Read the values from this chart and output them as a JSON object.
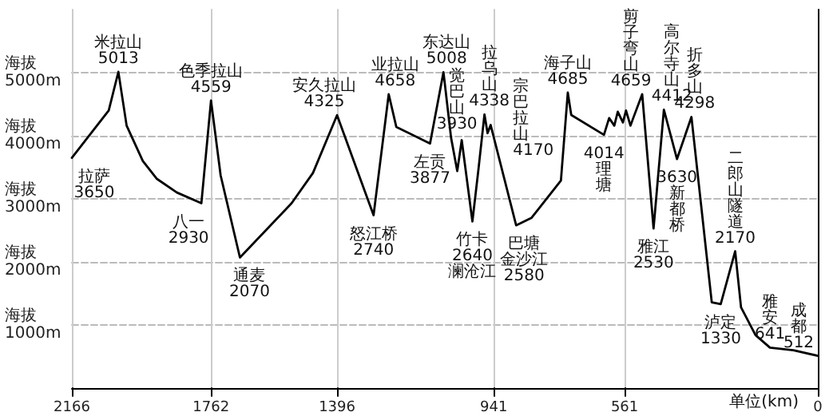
{
  "chart_data": {
    "type": "line",
    "xlabel": "单位(km)",
    "x": [
      2166,
      2059,
      2031,
      2007,
      1960,
      1920,
      1861,
      1790,
      1762,
      1734,
      1678,
      1528,
      1466,
      1396,
      1290,
      1246,
      1224,
      1126,
      1087,
      1065,
      1047,
      1034,
      1003,
      985,
      968,
      959,
      950,
      876,
      831,
      746,
      726,
      716,
      621,
      606,
      591,
      581,
      566,
      557,
      544,
      536,
      510,
      477,
      447,
      409,
      367,
      308,
      282,
      240,
      223,
      181,
      139,
      71,
      0
    ],
    "series": [
      {
        "color": "#000000",
        "values": [
          3650,
          4400,
          5013,
          4160,
          3600,
          3320,
          3100,
          2930,
          4559,
          3370,
          2070,
          2930,
          3410,
          4325,
          2740,
          4658,
          4140,
          3877,
          5008,
          3970,
          3440,
          3930,
          2640,
          3490,
          4338,
          4040,
          4170,
          2580,
          2700,
          3290,
          4685,
          4330,
          4014,
          4280,
          4160,
          4380,
          4210,
          4400,
          4160,
          4280,
          4659,
          2530,
          4412,
          3630,
          4298,
          1360,
          1330,
          2170,
          1280,
          840,
          641,
          600,
          512
        ],
        "value_labels": [
          "3650",
          null,
          "5013",
          null,
          null,
          null,
          null,
          "2930",
          "4559",
          null,
          "2070",
          null,
          null,
          "4325",
          "2740",
          "4658",
          null,
          "3877",
          "5008",
          null,
          null,
          "3930",
          "2640",
          null,
          "4338",
          null,
          "4170",
          "2580",
          null,
          null,
          "4685",
          null,
          "4014",
          null,
          null,
          null,
          null,
          null,
          null,
          null,
          "4659",
          "2530",
          "4412",
          "3630",
          "4298",
          null,
          "1330",
          "2170",
          null,
          null,
          "641",
          null,
          "512"
        ]
      }
    ],
    "annotations": [
      {
        "text": "拉萨",
        "x": 2166,
        "y": 3650
      },
      {
        "text": "米拉山",
        "x": 2031,
        "y": 5013
      },
      {
        "text": "八一",
        "x": 1790,
        "y": 2930
      },
      {
        "text": "色季拉山",
        "x": 1762,
        "y": 4559
      },
      {
        "text": "通麦",
        "x": 1678,
        "y": 2070
      },
      {
        "text": "安久拉山",
        "x": 1396,
        "y": 4325
      },
      {
        "text": "怒江桥",
        "x": 1290,
        "y": 2740
      },
      {
        "text": "业拉山",
        "x": 1246,
        "y": 4658
      },
      {
        "text": "左贡",
        "x": 1126,
        "y": 3877
      },
      {
        "text": "东达山",
        "x": 1087,
        "y": 5008
      },
      {
        "text": "觉巴山",
        "x": 1034,
        "y": 3930
      },
      {
        "text": "竹卡",
        "x": 1003,
        "y": 2640
      },
      {
        "text": "澜沧江",
        "x": 1003,
        "y": 2640
      },
      {
        "text": "拉乌山",
        "x": 968,
        "y": 4338
      },
      {
        "text": "宗巴拉山",
        "x": 950,
        "y": 4170
      },
      {
        "text": "巴塘",
        "x": 876,
        "y": 2580
      },
      {
        "text": "金沙江",
        "x": 876,
        "y": 2580
      },
      {
        "text": "海子山",
        "x": 726,
        "y": 4685
      },
      {
        "text": "理塘",
        "x": 621,
        "y": 4014
      },
      {
        "text": "剪子弯山",
        "x": 510,
        "y": 4659
      },
      {
        "text": "雅江",
        "x": 477,
        "y": 2530
      },
      {
        "text": "高尔寺山",
        "x": 447,
        "y": 4412
      },
      {
        "text": "新都桥",
        "x": 409,
        "y": 3630
      },
      {
        "text": "折多山",
        "x": 367,
        "y": 4298
      },
      {
        "text": "泸定",
        "x": 282,
        "y": 1330
      },
      {
        "text": "二郎山隧道",
        "x": 240,
        "y": 2170
      },
      {
        "text": "雅安",
        "x": 139,
        "y": 641
      },
      {
        "text": "成都",
        "x": 0,
        "y": 512
      }
    ],
    "xlim": [
      2166,
      0
    ],
    "xticks": [
      2166,
      1762,
      1396,
      941,
      561,
      0
    ],
    "ylabel": "海拔",
    "ylim": [
      0,
      6000
    ],
    "yticks": [
      {
        "value": 1000,
        "label": "1000m"
      },
      {
        "value": 2000,
        "label": "2000m"
      },
      {
        "value": 3000,
        "label": "3000m"
      },
      {
        "value": 4000,
        "label": "4000m"
      },
      {
        "value": 5000,
        "label": "5000m"
      }
    ],
    "grid": true,
    "marker": "none",
    "line_style": "solid"
  }
}
